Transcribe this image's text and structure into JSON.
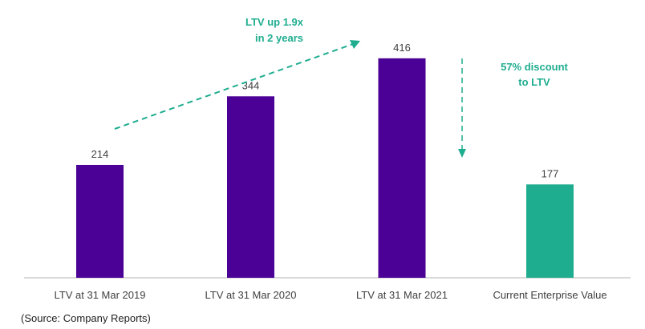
{
  "chart_data": {
    "type": "bar",
    "categories": [
      "LTV at 31 Mar 2019",
      "LTV at 31 Mar 2020",
      "LTV at 31 Mar 2021",
      "Current Enterprise Value"
    ],
    "values": [
      214,
      344,
      416,
      177
    ],
    "bar_colors": [
      "#4b0096",
      "#4b0096",
      "#4b0096",
      "#1fad8f"
    ],
    "ylim": [
      0,
      420
    ],
    "grid": false,
    "annotations": {
      "growth": [
        "LTV up 1.9x",
        "in 2 years"
      ],
      "discount": [
        "57% discount",
        "to LTV"
      ]
    },
    "annotation_color": "#1fad8f"
  },
  "source": "(Source: Company Reports)"
}
